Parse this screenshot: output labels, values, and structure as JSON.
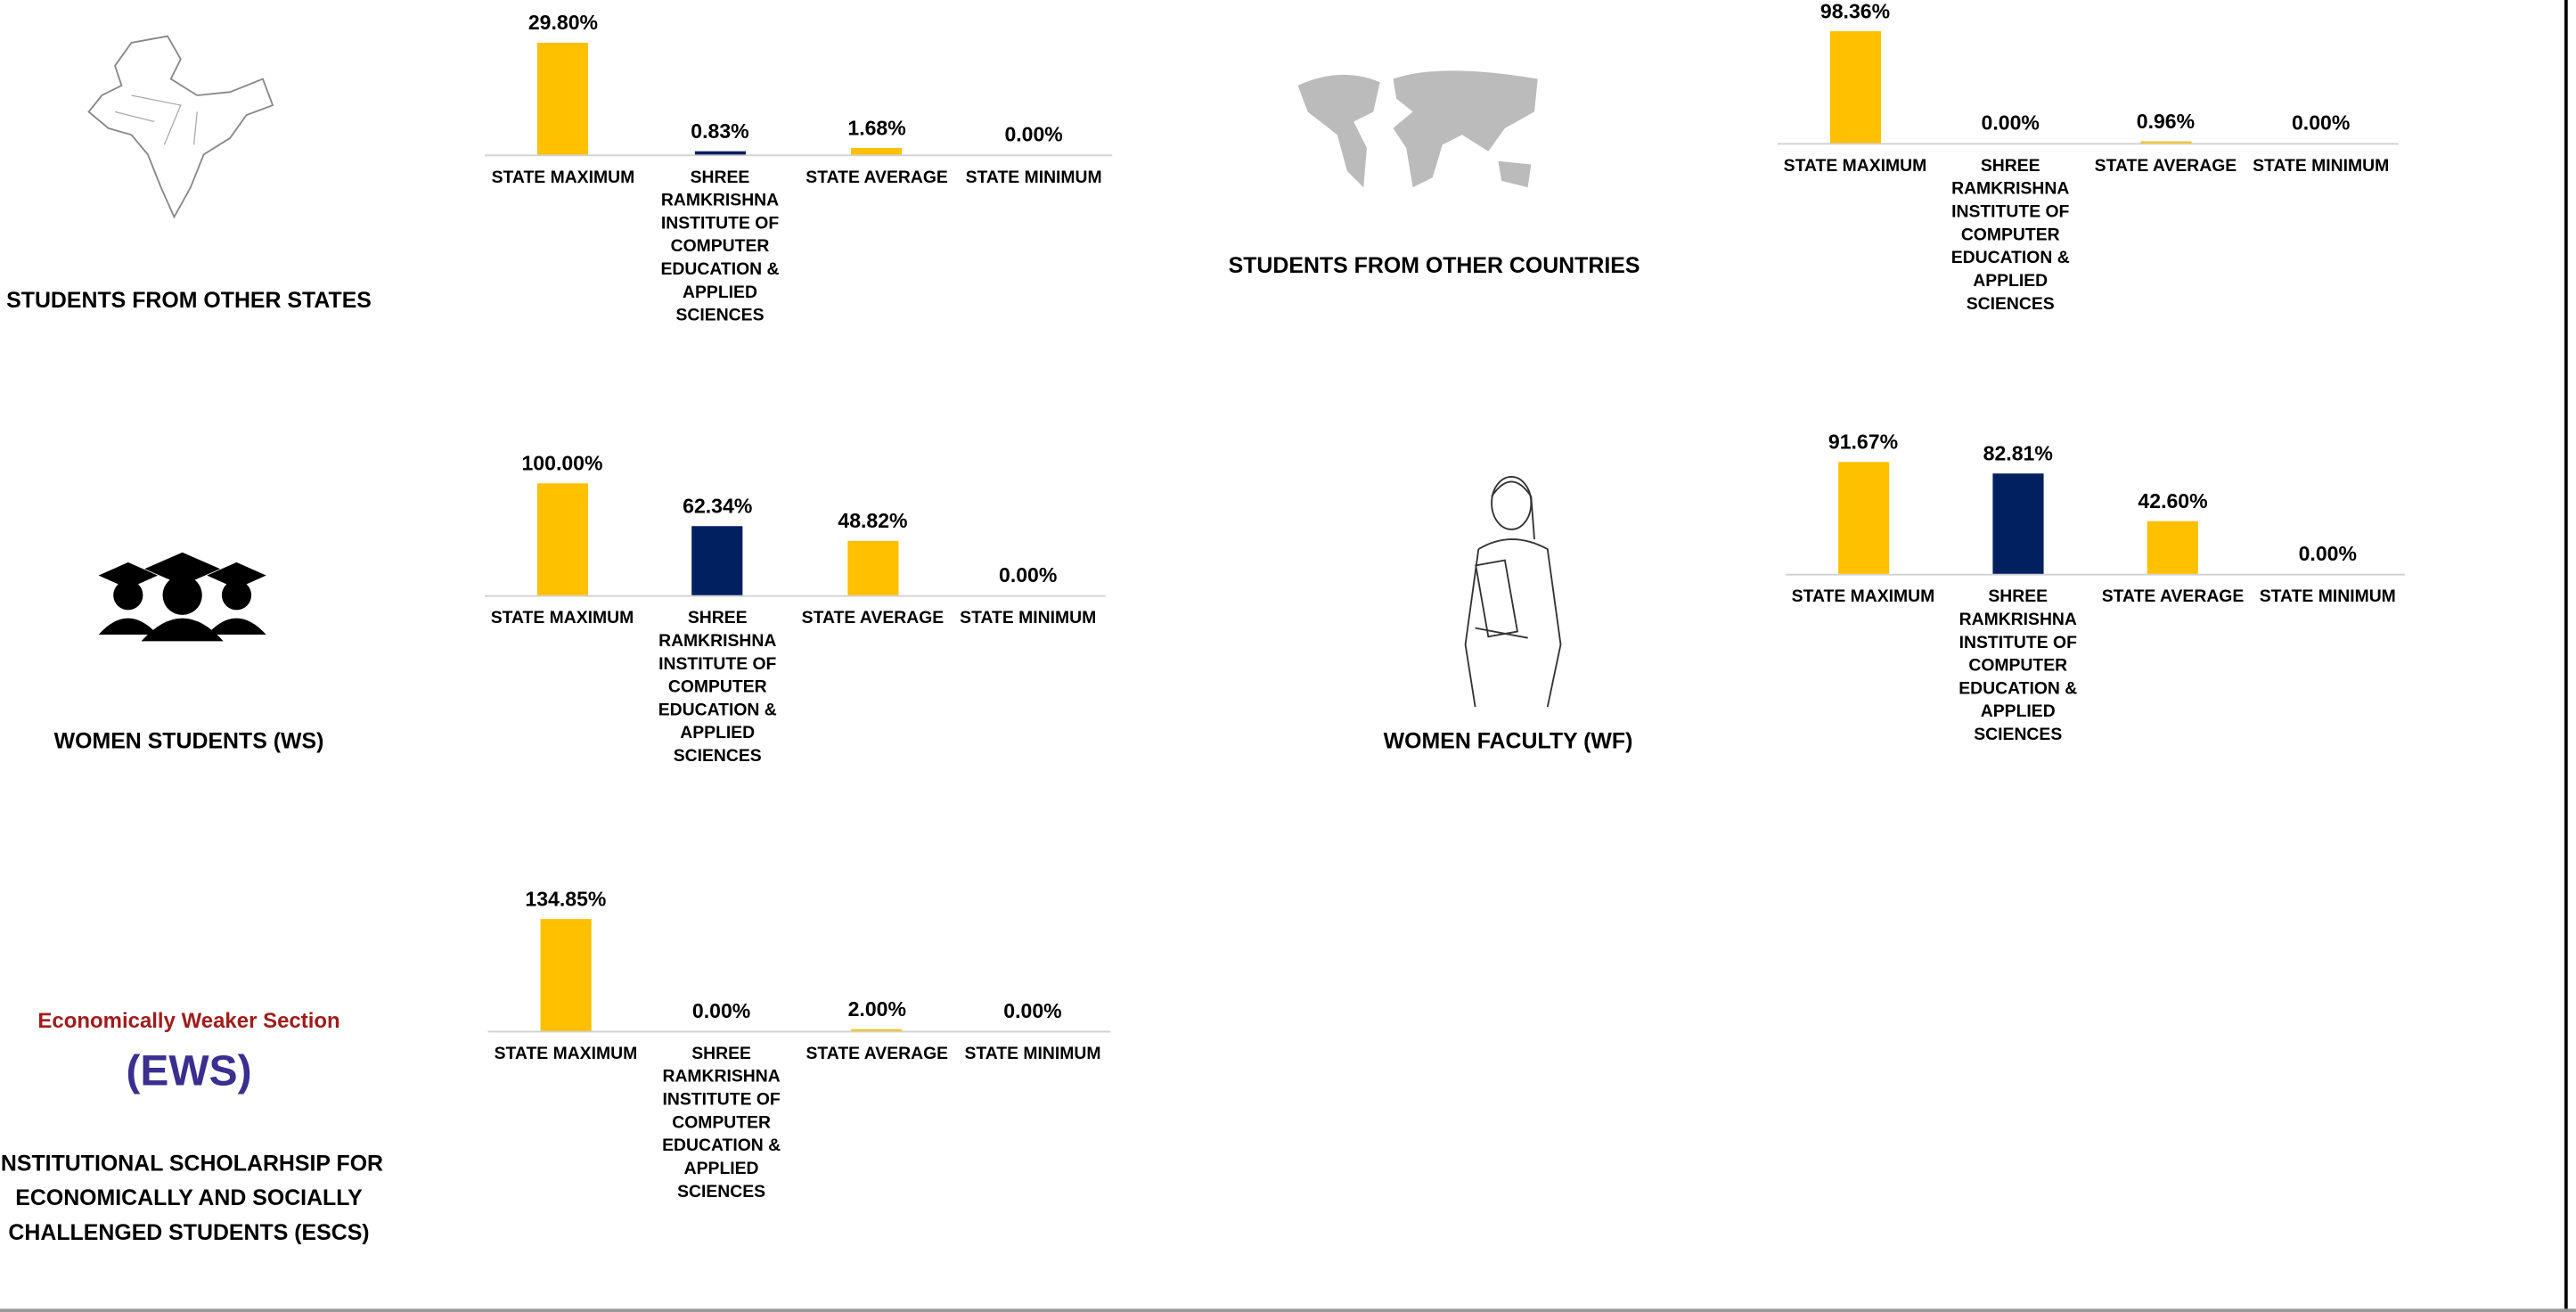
{
  "chart_data": [
    {
      "type": "bar",
      "title": "STUDENTS FROM OTHER STATES",
      "categories": [
        "STATE MAXIMUM",
        "SHREE RAMKRISHNA INSTITUTE OF COMPUTER EDUCATION & APPLIED SCIENCES",
        "STATE AVERAGE",
        "STATE MINIMUM"
      ],
      "values": [
        29.8,
        0.83,
        1.68,
        0
      ],
      "value_labels": [
        "29.80%",
        "0.83%",
        "1.68%",
        "0.00%"
      ],
      "colors": [
        "#FFC000",
        "#002060",
        "#FFC000",
        "#FFC000"
      ]
    },
    {
      "type": "bar",
      "title": "STUDENTS FROM OTHER COUNTRIES",
      "categories": [
        "STATE MAXIMUM",
        "SHREE RAMKRISHNA INSTITUTE OF COMPUTER EDUCATION & APPLIED SCIENCES",
        "STATE AVERAGE",
        "STATE MINIMUM"
      ],
      "values": [
        98.36,
        0,
        0.96,
        0
      ],
      "value_labels": [
        "98.36%",
        "0.00%",
        "0.96%",
        "0.00%"
      ],
      "colors": [
        "#FFC000",
        "#002060",
        "#FFC000",
        "#FFC000"
      ]
    },
    {
      "type": "bar",
      "title": "WOMEN STUDENTS (WS)",
      "categories": [
        "STATE MAXIMUM",
        "SHREE RAMKRISHNA INSTITUTE OF COMPUTER EDUCATION & APPLIED SCIENCES",
        "STATE AVERAGE",
        "STATE MINIMUM"
      ],
      "values": [
        100,
        62.34,
        48.82,
        0
      ],
      "value_labels": [
        "100.00%",
        "62.34%",
        "48.82%",
        "0.00%"
      ],
      "colors": [
        "#FFC000",
        "#002060",
        "#FFC000",
        "#FFC000"
      ]
    },
    {
      "type": "bar",
      "title": "WOMEN FACULTY (WF)",
      "categories": [
        "STATE MAXIMUM",
        "SHREE RAMKRISHNA INSTITUTE OF COMPUTER EDUCATION & APPLIED SCIENCES",
        "STATE AVERAGE",
        "STATE MINIMUM"
      ],
      "values": [
        91.67,
        82.81,
        42.6,
        0
      ],
      "value_labels": [
        "91.67%",
        "82.81%",
        "42.60%",
        "0.00%"
      ],
      "colors": [
        "#FFC000",
        "#002060",
        "#FFC000",
        "#FFC000"
      ]
    },
    {
      "type": "bar",
      "title": "INSTITUTIONAL SCHOLARHSIP FOR ECONOMICALLY AND SOCIALLY CHALLENGED STUDENTS (ESCS)",
      "categories": [
        "STATE MAXIMUM",
        "SHREE RAMKRISHNA INSTITUTE OF COMPUTER EDUCATION & APPLIED SCIENCES",
        "STATE AVERAGE",
        "STATE MINIMUM"
      ],
      "values": [
        134.85,
        0,
        2,
        0
      ],
      "value_labels": [
        "134.85%",
        "0.00%",
        "2.00%",
        "0.00%"
      ],
      "colors": [
        "#FFC000",
        "#002060",
        "#FFC000",
        "#FFC000"
      ]
    }
  ],
  "ews_logo": {
    "line1": "Economically Weaker Section",
    "line2": "(EWS)"
  }
}
